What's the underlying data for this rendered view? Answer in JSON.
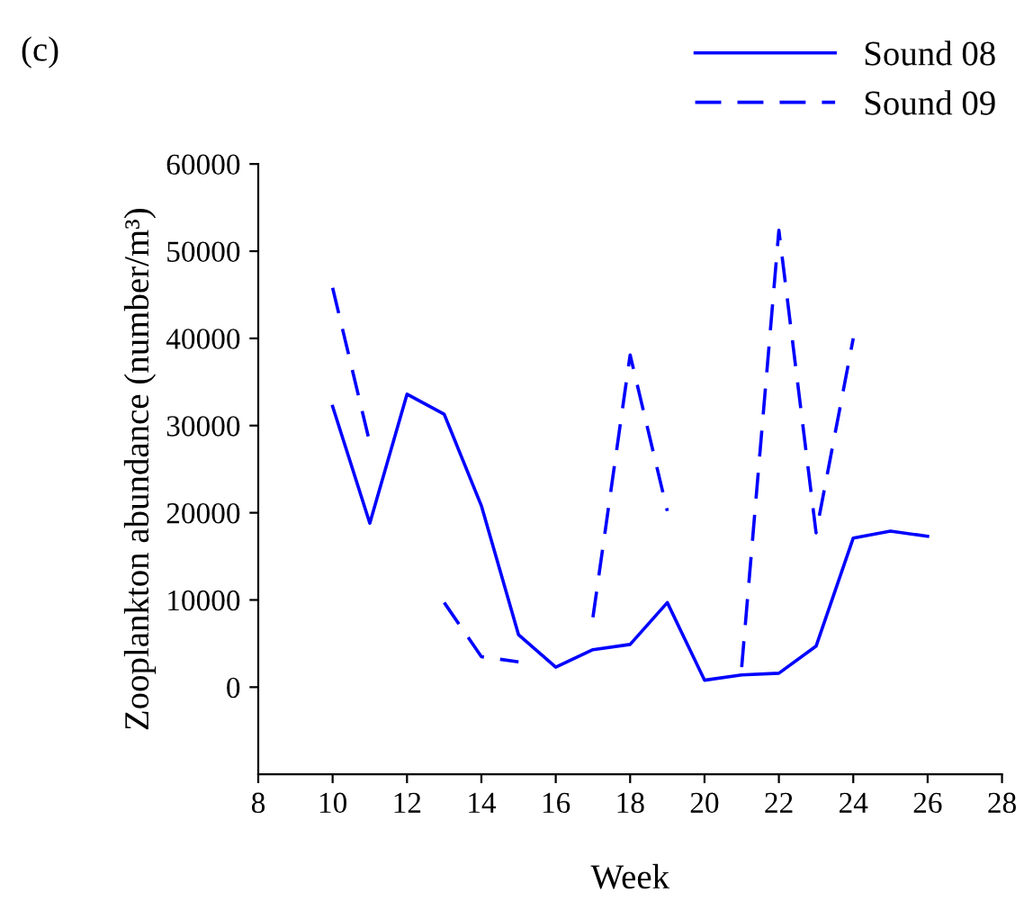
{
  "chart_data": {
    "type": "line",
    "title": "(c)",
    "xlabel": "Week",
    "ylabel": "Zooplankton abundance (number/m³)",
    "x": [
      10,
      11,
      12,
      13,
      14,
      15,
      16,
      17,
      18,
      19,
      20,
      21,
      22,
      23,
      24,
      25,
      26
    ],
    "series": [
      {
        "name": "Sound 08",
        "color": "#0000ff",
        "line_style": "solid",
        "values": [
          32200,
          18800,
          33600,
          31300,
          20800,
          6000,
          2300,
          4300,
          4900,
          9700,
          800,
          1400,
          1600,
          4700,
          17100,
          17900,
          17300
        ]
      },
      {
        "name": "Sound 09",
        "color": "#0000ff",
        "line_style": "dashed",
        "values": [
          45800,
          28000,
          null,
          9700,
          3500,
          2900,
          null,
          8000,
          38100,
          20200,
          null,
          2300,
          52400,
          17700,
          40000,
          null,
          null
        ]
      }
    ],
    "xlim": [
      8,
      28
    ],
    "xticks": [
      8,
      10,
      12,
      14,
      16,
      18,
      20,
      22,
      24,
      26,
      28
    ],
    "ylim": [
      -10000,
      60000
    ],
    "yticks": [
      0,
      10000,
      20000,
      30000,
      40000,
      50000,
      60000
    ],
    "grid": false,
    "legend": "top right",
    "marker": "none"
  }
}
